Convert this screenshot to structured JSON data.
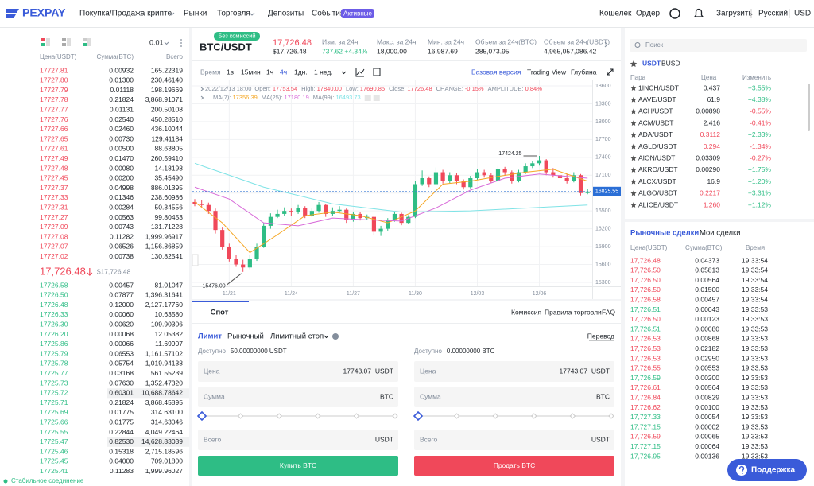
{
  "header": {
    "logo": "PEXPAY",
    "nav": [
      "Покупка/Продажа крипто",
      "Рынки",
      "Торговля",
      "Депозиты",
      "События"
    ],
    "badge": "Активные",
    "right": [
      "Кошелек",
      "Ордер",
      "Загрузить",
      "Русский",
      "USD"
    ]
  },
  "orderbook": {
    "precision": "0.01",
    "columns": [
      "Цена(USDT)",
      "Сумма(BTC)",
      "Всего"
    ],
    "asks": [
      [
        "17727.81",
        "0.00932",
        "165.22319"
      ],
      [
        "17727.80",
        "0.01300",
        "230.46140"
      ],
      [
        "17727.79",
        "0.01118",
        "198.19669"
      ],
      [
        "17727.78",
        "0.21824",
        "3,868.91071"
      ],
      [
        "17727.77",
        "0.01131",
        "200.50108"
      ],
      [
        "17727.76",
        "0.02540",
        "450.28510"
      ],
      [
        "17727.66",
        "0.02460",
        "436.10044"
      ],
      [
        "17727.65",
        "0.00730",
        "129.41184"
      ],
      [
        "17727.61",
        "0.00500",
        "88.63805"
      ],
      [
        "17727.49",
        "0.01470",
        "260.59410"
      ],
      [
        "17727.48",
        "0.00080",
        "14.18198"
      ],
      [
        "17727.45",
        "0.00200",
        "35.45490"
      ],
      [
        "17727.37",
        "0.04998",
        "886.01395"
      ],
      [
        "17727.33",
        "0.01346",
        "238.60986"
      ],
      [
        "17727.31",
        "0.00284",
        "50.34556"
      ],
      [
        "17727.27",
        "0.00563",
        "99.80453"
      ],
      [
        "17727.09",
        "0.00743",
        "131.71228"
      ],
      [
        "17727.08",
        "0.11282",
        "1,999.96917"
      ],
      [
        "17727.07",
        "0.06526",
        "1,156.86859"
      ],
      [
        "17727.02",
        "0.00738",
        "130.82541"
      ]
    ],
    "last_price": "17,726.48",
    "last_price_usd": "$17,726.48",
    "bids": [
      [
        "17726.58",
        "0.00457",
        "81.01047"
      ],
      [
        "17726.50",
        "0.07877",
        "1,396.31641"
      ],
      [
        "17726.48",
        "0.12000",
        "2,127.17760"
      ],
      [
        "17726.33",
        "0.00060",
        "10.63580"
      ],
      [
        "17726.30",
        "0.00620",
        "109.90306"
      ],
      [
        "17726.20",
        "0.00068",
        "12.05382"
      ],
      [
        "17725.86",
        "0.00066",
        "11.69907"
      ],
      [
        "17725.79",
        "0.06553",
        "1,161.57102"
      ],
      [
        "17725.78",
        "0.05754",
        "1,019.94138"
      ],
      [
        "17725.77",
        "0.03168",
        "561.55239"
      ],
      [
        "17725.73",
        "0.07630",
        "1,352.47320"
      ],
      [
        "17725.72",
        "0.60301",
        "10,688.78642"
      ],
      [
        "17725.71",
        "0.21824",
        "3,868.45895"
      ],
      [
        "17725.69",
        "0.01775",
        "314.63100"
      ],
      [
        "17725.66",
        "0.01775",
        "314.63046"
      ],
      [
        "17725.55",
        "0.22844",
        "4,049.22464"
      ],
      [
        "17725.47",
        "0.82530",
        "14,628.83039"
      ],
      [
        "17725.46",
        "0.15318",
        "2,715.18596"
      ],
      [
        "17725.45",
        "0.04000",
        "709.01800"
      ],
      [
        "17725.41",
        "0.11283",
        "1,999.96027"
      ]
    ],
    "status": "Стабильное соединение"
  },
  "ticker": {
    "symbol": "BTC/USDT",
    "badge": "Без комиссий",
    "price": "17,726.48",
    "price_usd": "$17,726.48",
    "stats": [
      {
        "label": "Изм. за 24ч",
        "value": "737.62 +4.34%"
      },
      {
        "label": "Макс. за 24ч",
        "value": "18,000.00"
      },
      {
        "label": "Мин. за 24ч",
        "value": "16,987.69"
      },
      {
        "label": "Объем за 24ч(BTC)",
        "value": "285,073.95"
      },
      {
        "label": "Объем за 24ч(USDT)",
        "value": "4,965,057,086.42"
      }
    ]
  },
  "chart_toolbar": {
    "intervals": [
      "Время",
      "1s",
      "15мин",
      "1ч",
      "4ч",
      "1дн.",
      "1 нед."
    ],
    "views": [
      "Базовая версия",
      "Trading View",
      "Глубина"
    ]
  },
  "chart": {
    "type": "candlestick",
    "info_date": "2022/12/13 18:00",
    "info": [
      {
        "label": "Open:",
        "value": "17753.54"
      },
      {
        "label": "High:",
        "value": "17840.00"
      },
      {
        "label": "Low:",
        "value": "17690.85"
      },
      {
        "label": "Close:",
        "value": "17726.48"
      },
      {
        "label": "CHANGE:",
        "value": "-0.15%"
      },
      {
        "label": "AMPLITUDE:",
        "value": "0.84%"
      }
    ],
    "ma": [
      {
        "label": "MA(7):",
        "value": "17356.39",
        "color": "#f5a623",
        "x": [
          0,
          4,
          8,
          12,
          16,
          20,
          24,
          28,
          32,
          36,
          40,
          44,
          48,
          52,
          57
        ],
        "values": [
          16650,
          16300,
          15800,
          16100,
          16420,
          16480,
          16420,
          16300,
          16500,
          16950,
          17000,
          17080,
          17150,
          17200,
          17000
        ]
      },
      {
        "label": "MA(25):",
        "value": "17180.19",
        "color": "#d86bd9",
        "x": [
          0,
          5,
          10,
          15,
          20,
          25,
          30,
          35,
          40,
          45,
          50,
          57
        ],
        "values": [
          16900,
          16700,
          16300,
          16250,
          16380,
          16350,
          16330,
          16550,
          16850,
          17050,
          17120,
          17050
        ]
      },
      {
        "label": "MA(99):",
        "value": "16493.73",
        "color": "#7fe3e6",
        "x": [
          0,
          10,
          20,
          30,
          40,
          50,
          57
        ],
        "values": [
          17300,
          16900,
          16620,
          16480,
          16500,
          16560,
          16600
        ]
      }
    ],
    "up_color": "#2ebd85",
    "down_color": "#f0485a",
    "candles": [
      [
        16650,
        16700,
        16580,
        16620
      ],
      [
        16620,
        16680,
        16560,
        16600
      ],
      [
        16600,
        16640,
        16450,
        16500
      ],
      [
        16500,
        16540,
        16120,
        16180
      ],
      [
        16180,
        16220,
        15850,
        15900
      ],
      [
        15900,
        15950,
        15650,
        15700
      ],
      [
        15700,
        15760,
        15560,
        15600
      ],
      [
        15600,
        15680,
        15476,
        15550
      ],
      [
        15550,
        15760,
        15520,
        15700
      ],
      [
        15700,
        15950,
        15660,
        15900
      ],
      [
        15900,
        16300,
        15880,
        16250
      ],
      [
        16250,
        16460,
        16200,
        16400
      ],
      [
        16400,
        16520,
        16380,
        16450
      ],
      [
        16450,
        16560,
        16420,
        16500
      ],
      [
        16500,
        16540,
        16420,
        16480
      ],
      [
        16480,
        16600,
        16450,
        16550
      ],
      [
        16550,
        16580,
        16380,
        16420
      ],
      [
        16420,
        16540,
        16400,
        16500
      ],
      [
        16500,
        16650,
        16470,
        16600
      ],
      [
        16600,
        16620,
        16400,
        16450
      ],
      [
        16450,
        16560,
        16420,
        16500
      ],
      [
        16500,
        16580,
        16470,
        16520
      ],
      [
        16520,
        16540,
        16300,
        16350
      ],
      [
        16350,
        16490,
        16320,
        16450
      ],
      [
        16450,
        16480,
        16340,
        16380
      ],
      [
        16380,
        16440,
        16350,
        16400
      ],
      [
        16400,
        16420,
        16100,
        16150
      ],
      [
        16150,
        16250,
        16080,
        16200
      ],
      [
        16200,
        16380,
        16170,
        16350
      ],
      [
        16350,
        16480,
        16320,
        16450
      ],
      [
        16450,
        16470,
        16260,
        16300
      ],
      [
        16300,
        16430,
        16280,
        16400
      ],
      [
        16400,
        17000,
        16380,
        16950
      ],
      [
        16950,
        17180,
        16920,
        17050
      ],
      [
        17050,
        17080,
        16900,
        16950
      ],
      [
        16950,
        17230,
        16930,
        17150
      ],
      [
        17150,
        17190,
        16960,
        17000
      ],
      [
        17000,
        17150,
        16970,
        17100
      ],
      [
        17100,
        17130,
        16950,
        17000
      ],
      [
        17000,
        17030,
        16860,
        16900
      ],
      [
        16900,
        17090,
        16880,
        17050
      ],
      [
        17050,
        17200,
        17020,
        17150
      ],
      [
        17150,
        17190,
        17060,
        17100
      ],
      [
        17100,
        17130,
        16970,
        17000
      ],
      [
        17000,
        17260,
        16980,
        17200
      ],
      [
        17200,
        17240,
        17100,
        17150
      ],
      [
        17150,
        17180,
        16960,
        17000
      ],
      [
        17000,
        17190,
        16980,
        17150
      ],
      [
        17150,
        17300,
        17120,
        17250
      ],
      [
        17250,
        17340,
        17220,
        17300
      ],
      [
        17300,
        17424.25,
        17260,
        17350
      ],
      [
        17350,
        17370,
        17100,
        17150
      ],
      [
        17150,
        17220,
        17060,
        17100
      ],
      [
        17100,
        17140,
        17000,
        17050
      ],
      [
        17050,
        17120,
        16960,
        17000
      ],
      [
        17000,
        17150,
        16980,
        17100
      ],
      [
        17100,
        17120,
        16760,
        16800
      ],
      [
        16800,
        16870,
        16780,
        16825.55
      ]
    ],
    "high_label": "17424.25",
    "low_label": "15476.00",
    "last_tag": 16825.55,
    "ylim": [
      15300,
      18600
    ],
    "yticks": [
      15300,
      15600,
      15900,
      16200,
      16500,
      16800,
      17100,
      17400,
      17700,
      18000,
      18300,
      18600
    ],
    "xticks": [
      {
        "value": 5,
        "label": "11/21"
      },
      {
        "value": 14,
        "label": "11/24"
      },
      {
        "value": 23,
        "label": "11/27"
      },
      {
        "value": 32,
        "label": "11/30"
      },
      {
        "value": 41,
        "label": "12/03"
      },
      {
        "value": 50,
        "label": "12/06"
      }
    ]
  },
  "spot": {
    "tab": "Спот",
    "links": [
      "Комиссия",
      "Правила торговли",
      "FAQ"
    ],
    "order_types": [
      "Лимит",
      "Рыночный",
      "Лимитный стоп"
    ],
    "transfer": "Перевод",
    "forms": [
      {
        "available_label": "Доступно",
        "available": "50.00000000 USDT",
        "price_label": "Цена",
        "price": "17743.07",
        "price_unit": "USDT",
        "amount_label": "Сумма",
        "amount_unit": "BTC",
        "total_label": "Всего",
        "total_unit": "USDT",
        "button": "Купить BTC",
        "color": "#2ebd85"
      },
      {
        "available_label": "Доступно",
        "available": "0.00000000 BTC",
        "price_label": "Цена",
        "price": "17743.07",
        "price_unit": "USDT",
        "amount_label": "Сумма",
        "amount_unit": "BTC",
        "total_label": "Всего",
        "total_unit": "USDT",
        "button": "Продать BTC",
        "color": "#f0485a"
      }
    ]
  },
  "markets": {
    "search": "Поиск",
    "tabs": [
      "USDT",
      "BUSD"
    ],
    "columns": [
      "Пара",
      "Цена",
      "Изменить"
    ],
    "rows": [
      {
        "pair": "1INCH/USDT",
        "price": "0.437",
        "change": "+3.55%",
        "price_color": "#1e2329"
      },
      {
        "pair": "AAVE/USDT",
        "price": "61.9",
        "change": "+4.38%",
        "price_color": "#1e2329"
      },
      {
        "pair": "ACH/USDT",
        "price": "0.00898",
        "change": "-0.55%",
        "price_color": "#1e2329"
      },
      {
        "pair": "ACM/USDT",
        "price": "2.416",
        "change": "-0.41%",
        "price_color": "#1e2329"
      },
      {
        "pair": "ADA/USDT",
        "price": "0.3112",
        "change": "+2.33%",
        "price_color": "#f0485a"
      },
      {
        "pair": "AGLD/USDT",
        "price": "0.294",
        "change": "-1.34%",
        "price_color": "#f0485a"
      },
      {
        "pair": "AION/USDT",
        "price": "0.03309",
        "change": "-0.27%",
        "price_color": "#1e2329"
      },
      {
        "pair": "AKRO/USDT",
        "price": "0.00290",
        "change": "+1.75%",
        "price_color": "#1e2329"
      },
      {
        "pair": "ALCX/USDT",
        "price": "16.9",
        "change": "+1.20%",
        "price_color": "#1e2329"
      },
      {
        "pair": "ALGO/USDT",
        "price": "0.2217",
        "change": "+3.31%",
        "price_color": "#f0485a"
      },
      {
        "pair": "ALICE/USDT",
        "price": "1.260",
        "change": "+1.12%",
        "price_color": "#f0485a"
      }
    ]
  },
  "trades": {
    "tabs": [
      "Рыночные сделки",
      "Мои сделки"
    ],
    "columns": [
      "Цена(USDT)",
      "Сумма(BTC)",
      "Время"
    ],
    "rows": [
      {
        "price": "17,726.48",
        "amount": "0.04373",
        "time": "19:33:54",
        "color": "#f0485a"
      },
      {
        "price": "17,726.50",
        "amount": "0.05813",
        "time": "19:33:54",
        "color": "#f0485a"
      },
      {
        "price": "17,726.50",
        "amount": "0.00564",
        "time": "19:33:54",
        "color": "#f0485a"
      },
      {
        "price": "17,726.50",
        "amount": "0.01500",
        "time": "19:33:54",
        "color": "#f0485a"
      },
      {
        "price": "17,726.58",
        "amount": "0.00457",
        "time": "19:33:54",
        "color": "#f0485a"
      },
      {
        "price": "17,726.51",
        "amount": "0.00043",
        "time": "19:33:53",
        "color": "#2ebd85"
      },
      {
        "price": "17,726.50",
        "amount": "0.00123",
        "time": "19:33:53",
        "color": "#f0485a"
      },
      {
        "price": "17,726.51",
        "amount": "0.00080",
        "time": "19:33:53",
        "color": "#2ebd85"
      },
      {
        "price": "17,726.53",
        "amount": "0.00868",
        "time": "19:33:53",
        "color": "#f0485a"
      },
      {
        "price": "17,726.53",
        "amount": "0.02182",
        "time": "19:33:53",
        "color": "#f0485a"
      },
      {
        "price": "17,726.53",
        "amount": "0.02950",
        "time": "19:33:53",
        "color": "#f0485a"
      },
      {
        "price": "17,726.55",
        "amount": "0.00553",
        "time": "19:33:53",
        "color": "#f0485a"
      },
      {
        "price": "17,726.59",
        "amount": "0.00200",
        "time": "19:33:53",
        "color": "#2ebd85"
      },
      {
        "price": "17,726.61",
        "amount": "0.00564",
        "time": "19:33:53",
        "color": "#f0485a"
      },
      {
        "price": "17,726.84",
        "amount": "0.00829",
        "time": "19:33:53",
        "color": "#f0485a"
      },
      {
        "price": "17,726.62",
        "amount": "0.00100",
        "time": "19:33:53",
        "color": "#f0485a"
      },
      {
        "price": "17,727.33",
        "amount": "0.00054",
        "time": "19:33:53",
        "color": "#2ebd85"
      },
      {
        "price": "17,727.15",
        "amount": "0.00002",
        "time": "19:33:53",
        "color": "#2ebd85"
      },
      {
        "price": "17,726.59",
        "amount": "0.00065",
        "time": "19:33:53",
        "color": "#f0485a"
      },
      {
        "price": "17,727.15",
        "amount": "0.00064",
        "time": "19:33:53",
        "color": "#2ebd85"
      },
      {
        "price": "17,726.95",
        "amount": "0.00136",
        "time": "19:33:53",
        "color": "#2ebd85"
      }
    ]
  },
  "support": "Поддержка"
}
